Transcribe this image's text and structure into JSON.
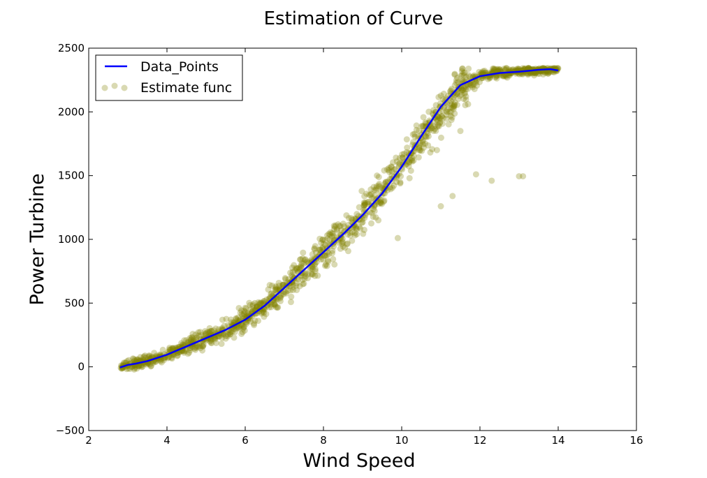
{
  "chart_data": {
    "type": "scatter",
    "title": "Estimation of Curve",
    "xlabel": "Wind Speed",
    "ylabel": "Power Turbine",
    "xlim": [
      2,
      16
    ],
    "ylim": [
      -500,
      2500
    ],
    "xticks": [
      2,
      4,
      6,
      8,
      10,
      12,
      14,
      16
    ],
    "yticks": [
      -500,
      0,
      500,
      1000,
      1500,
      2000,
      2500
    ],
    "xtick_labels": [
      "2",
      "4",
      "6",
      "8",
      "10",
      "12",
      "14",
      "16"
    ],
    "ytick_labels": [
      "−500",
      "0",
      "500",
      "1000",
      "1500",
      "2000",
      "2500"
    ],
    "grid": false,
    "legend_position": "top-left",
    "series": [
      {
        "name": "Data_Points",
        "kind": "line",
        "color": "#0000ff",
        "x": [
          2.8,
          3.0,
          3.2,
          3.5,
          4.0,
          4.5,
          5.0,
          5.5,
          6.0,
          6.5,
          7.0,
          7.5,
          8.0,
          8.5,
          9.0,
          9.5,
          10.0,
          10.5,
          11.0,
          11.5,
          12.0,
          12.5,
          13.0,
          13.5,
          13.8,
          14.0
        ],
        "y": [
          -5,
          15,
          25,
          45,
          95,
          160,
          225,
          290,
          370,
          480,
          620,
          760,
          900,
          1040,
          1190,
          1360,
          1570,
          1810,
          2040,
          2210,
          2280,
          2305,
          2315,
          2330,
          2335,
          2325
        ]
      },
      {
        "name": "Estimate func",
        "kind": "scatter",
        "color": "#808000",
        "opacity": 0.3,
        "trend_x": [
          2.8,
          3.0,
          3.2,
          3.5,
          4.0,
          4.5,
          5.0,
          5.5,
          6.0,
          6.5,
          7.0,
          7.5,
          8.0,
          8.5,
          9.0,
          9.5,
          10.0,
          10.5,
          11.0,
          11.5,
          12.0,
          12.5,
          13.0,
          13.5,
          14.0
        ],
        "trend_y": [
          5,
          15,
          25,
          45,
          95,
          160,
          225,
          290,
          370,
          480,
          620,
          760,
          900,
          1040,
          1190,
          1380,
          1580,
          1800,
          2020,
          2220,
          2290,
          2310,
          2320,
          2328,
          2330
        ],
        "trend_count": 1400,
        "trend_spread_x": 0.12,
        "trend_spread_y": 55,
        "outliers_x": [
          11.0,
          11.3,
          11.9,
          12.3,
          13.0,
          13.1,
          10.9,
          11.5,
          10.2,
          9.9
        ],
        "outliers_y": [
          1260,
          1340,
          1510,
          1460,
          1495,
          1495,
          1700,
          1850,
          1480,
          1010
        ]
      }
    ]
  }
}
